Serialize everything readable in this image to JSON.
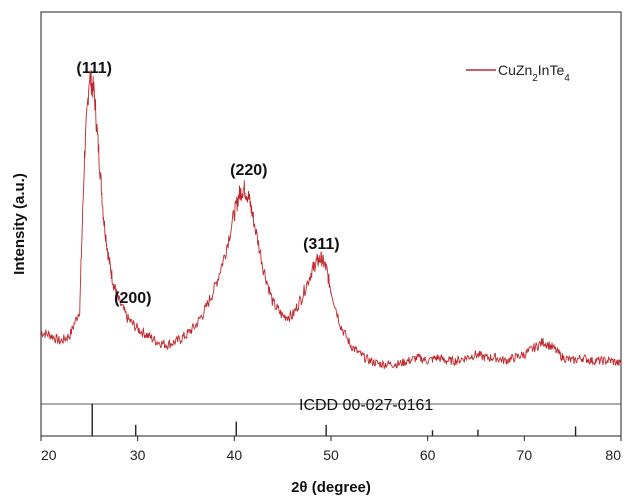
{
  "chart_data": {
    "type": "line",
    "xlabel": "2θ (degree)",
    "ylabel": "Intensity (a.u.)",
    "xlim": [
      20,
      80
    ],
    "x_ticks": [
      "20",
      "30",
      "40",
      "50",
      "60",
      "70",
      "80"
    ],
    "legend": {
      "position": "top-right"
    },
    "series": [
      {
        "name": "CuZn2InTe4",
        "color": "#c0282d",
        "x": [
          20,
          21,
          22,
          23,
          24,
          24.5,
          25,
          25.5,
          26,
          26.5,
          27,
          27.5,
          28,
          29,
          30,
          31,
          32,
          33,
          34,
          35,
          36,
          37,
          38,
          39,
          40,
          40.5,
          41,
          41.5,
          42,
          43,
          44,
          45,
          46,
          47,
          48,
          48.5,
          49,
          49.5,
          50,
          51,
          52,
          53,
          54,
          55,
          56,
          57,
          58,
          59,
          60,
          61,
          62,
          63,
          64,
          65,
          66,
          67,
          68,
          69,
          70,
          71,
          72,
          73,
          74,
          75,
          76,
          77,
          78,
          79,
          80
        ],
        "y": [
          0.15,
          0.14,
          0.12,
          0.14,
          0.22,
          0.7,
          0.95,
          0.9,
          0.7,
          0.5,
          0.38,
          0.3,
          0.25,
          0.19,
          0.16,
          0.14,
          0.12,
          0.11,
          0.12,
          0.14,
          0.17,
          0.22,
          0.29,
          0.39,
          0.52,
          0.58,
          0.6,
          0.57,
          0.5,
          0.35,
          0.24,
          0.2,
          0.2,
          0.26,
          0.34,
          0.37,
          0.38,
          0.35,
          0.28,
          0.17,
          0.11,
          0.08,
          0.06,
          0.05,
          0.05,
          0.05,
          0.06,
          0.07,
          0.06,
          0.07,
          0.06,
          0.06,
          0.07,
          0.08,
          0.07,
          0.07,
          0.06,
          0.07,
          0.08,
          0.1,
          0.12,
          0.1,
          0.07,
          0.06,
          0.07,
          0.06,
          0.06,
          0.06,
          0.05
        ]
      }
    ],
    "peak_labels": [
      {
        "text": "(111)",
        "x": 25.5,
        "y": 0.96
      },
      {
        "text": "(200)",
        "x": 29.5,
        "y": 0.24
      },
      {
        "text": "(220)",
        "x": 41.5,
        "y": 0.64
      },
      {
        "text": "(311)",
        "x": 49,
        "y": 0.41
      }
    ],
    "reference": {
      "label": "ICDD 00-027-0161",
      "peaks": [
        {
          "x": 25.3,
          "height": 1.0
        },
        {
          "x": 29.8,
          "height": 0.35
        },
        {
          "x": 40.2,
          "height": 0.45
        },
        {
          "x": 49.5,
          "height": 0.35
        },
        {
          "x": 60.5,
          "height": 0.18
        },
        {
          "x": 65.2,
          "height": 0.2
        },
        {
          "x": 75.3,
          "height": 0.3
        }
      ]
    }
  }
}
